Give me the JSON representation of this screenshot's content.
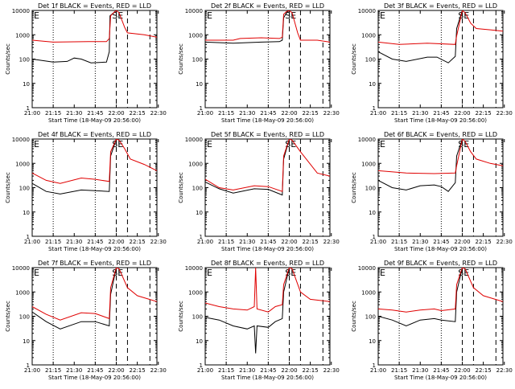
{
  "shared": {
    "xlabel": "Start Time (18-May-09 20:56:00)",
    "ylabel": "Counts/sec",
    "xticks": [
      "21:00",
      "21:15",
      "21:30",
      "21:45",
      "22:00",
      "22:15",
      "22:30"
    ],
    "yticks": [
      "1",
      "10",
      "100",
      "1000",
      "10000"
    ],
    "marker_left": "E",
    "marker_right": "SE",
    "series_colors": {
      "events": "#000000",
      "lld": "#e00000"
    }
  },
  "chart_data": [
    {
      "type": "line",
      "title": "Det 1f BLACK = Events, RED = LLD",
      "ylim": [
        1,
        10000
      ],
      "log_y": true,
      "series": [
        {
          "key": "events",
          "values": [
            [
              0,
              100
            ],
            [
              15,
              75
            ],
            [
              25,
              80
            ],
            [
              30,
              110
            ],
            [
              35,
              100
            ],
            [
              42,
              70
            ],
            [
              53,
              75
            ],
            [
              55,
              200
            ],
            [
              55.5,
              6000
            ],
            [
              60,
              10000
            ]
          ]
        },
        {
          "key": "lld",
          "values": [
            [
              0,
              600
            ],
            [
              15,
              500
            ],
            [
              40,
              520
            ],
            [
              53,
              520
            ],
            [
              55,
              700
            ],
            [
              56,
              6000
            ],
            [
              59,
              9000
            ],
            [
              60,
              10000
            ],
            [
              62,
              8000
            ],
            [
              66,
              2000
            ],
            [
              68,
              1200
            ],
            [
              80,
              1000
            ],
            [
              89,
              800
            ]
          ]
        }
      ]
    },
    {
      "type": "line",
      "title": "Det 2f BLACK = Events, RED = LLD",
      "ylim": [
        1,
        10000
      ],
      "log_y": true,
      "series": [
        {
          "key": "events",
          "values": [
            [
              0,
              500
            ],
            [
              20,
              450
            ],
            [
              40,
              500
            ],
            [
              53,
              520
            ],
            [
              55,
              600
            ],
            [
              56,
              5000
            ],
            [
              58,
              8000
            ],
            [
              60,
              10000
            ]
          ]
        },
        {
          "key": "lld",
          "values": [
            [
              0,
              600
            ],
            [
              20,
              600
            ],
            [
              25,
              700
            ],
            [
              40,
              750
            ],
            [
              53,
              700
            ],
            [
              55,
              800
            ],
            [
              56,
              7000
            ],
            [
              58,
              9000
            ],
            [
              60,
              10000
            ],
            [
              62,
              8000
            ],
            [
              66,
              1200
            ],
            [
              68,
              600
            ],
            [
              80,
              600
            ],
            [
              89,
              500
            ]
          ]
        }
      ]
    },
    {
      "type": "line",
      "title": "Det 3f BLACK = Events, RED = LLD",
      "ylim": [
        1,
        10000
      ],
      "log_y": true,
      "series": [
        {
          "key": "events",
          "values": [
            [
              0,
              200
            ],
            [
              10,
              100
            ],
            [
              20,
              80
            ],
            [
              35,
              120
            ],
            [
              42,
              120
            ],
            [
              50,
              70
            ],
            [
              55,
              130
            ],
            [
              56,
              1800
            ],
            [
              60,
              10000
            ]
          ]
        },
        {
          "key": "lld",
          "values": [
            [
              0,
              500
            ],
            [
              15,
              400
            ],
            [
              35,
              450
            ],
            [
              55,
              400
            ],
            [
              56,
              900
            ],
            [
              60,
              10000
            ],
            [
              62,
              8000
            ],
            [
              66,
              3000
            ],
            [
              70,
              1800
            ],
            [
              80,
              1600
            ],
            [
              89,
              1400
            ]
          ]
        }
      ]
    },
    {
      "type": "line",
      "title": "Det 4f BLACK = Events, RED = LLD",
      "ylim": [
        1,
        10000
      ],
      "log_y": true,
      "series": [
        {
          "key": "events",
          "values": [
            [
              0,
              150
            ],
            [
              10,
              70
            ],
            [
              20,
              55
            ],
            [
              35,
              80
            ],
            [
              45,
              75
            ],
            [
              55,
              70
            ],
            [
              56,
              2000
            ],
            [
              60,
              10000
            ]
          ]
        },
        {
          "key": "lld",
          "values": [
            [
              0,
              400
            ],
            [
              10,
              200
            ],
            [
              20,
              150
            ],
            [
              35,
              250
            ],
            [
              45,
              220
            ],
            [
              55,
              180
            ],
            [
              56,
              3000
            ],
            [
              60,
              10000
            ],
            [
              62,
              9000
            ],
            [
              66,
              4000
            ],
            [
              70,
              1500
            ],
            [
              80,
              900
            ],
            [
              89,
              500
            ]
          ]
        }
      ]
    },
    {
      "type": "line",
      "title": "Det 5f BLACK = Events, RED = LLD",
      "ylim": [
        1,
        10000
      ],
      "log_y": true,
      "series": [
        {
          "key": "events",
          "values": [
            [
              0,
              170
            ],
            [
              10,
              90
            ],
            [
              20,
              60
            ],
            [
              35,
              90
            ],
            [
              45,
              85
            ],
            [
              55,
              50
            ],
            [
              56,
              1500
            ],
            [
              60,
              10000
            ]
          ]
        },
        {
          "key": "lld",
          "values": [
            [
              0,
              220
            ],
            [
              10,
              100
            ],
            [
              20,
              80
            ],
            [
              35,
              120
            ],
            [
              45,
              110
            ],
            [
              55,
              70
            ],
            [
              56,
              2000
            ],
            [
              60,
              10000
            ],
            [
              62,
              9000
            ],
            [
              68,
              3000
            ],
            [
              80,
              400
            ],
            [
              89,
              300
            ]
          ]
        }
      ]
    },
    {
      "type": "line",
      "title": "Det 6f BLACK = Events, RED = LLD",
      "ylim": [
        1,
        10000
      ],
      "log_y": true,
      "series": [
        {
          "key": "events",
          "values": [
            [
              0,
              200
            ],
            [
              10,
              100
            ],
            [
              20,
              80
            ],
            [
              30,
              120
            ],
            [
              40,
              130
            ],
            [
              45,
              110
            ],
            [
              50,
              70
            ],
            [
              55,
              160
            ],
            [
              56,
              2000
            ],
            [
              60,
              10000
            ]
          ]
        },
        {
          "key": "lld",
          "values": [
            [
              0,
              500
            ],
            [
              20,
              400
            ],
            [
              40,
              380
            ],
            [
              55,
              400
            ],
            [
              56,
              800
            ],
            [
              60,
              10000
            ],
            [
              62,
              8000
            ],
            [
              66,
              3000
            ],
            [
              70,
              1500
            ],
            [
              80,
              1000
            ],
            [
              89,
              800
            ]
          ]
        }
      ]
    },
    {
      "type": "line",
      "title": "Det 7f BLACK = Events, RED = LLD",
      "ylim": [
        1,
        10000
      ],
      "log_y": true,
      "series": [
        {
          "key": "events",
          "values": [
            [
              0,
              150
            ],
            [
              10,
              60
            ],
            [
              20,
              30
            ],
            [
              35,
              60
            ],
            [
              45,
              60
            ],
            [
              55,
              40
            ],
            [
              56,
              800
            ],
            [
              60,
              10000
            ]
          ]
        },
        {
          "key": "lld",
          "values": [
            [
              0,
              250
            ],
            [
              10,
              120
            ],
            [
              20,
              70
            ],
            [
              35,
              140
            ],
            [
              45,
              130
            ],
            [
              55,
              80
            ],
            [
              56,
              1500
            ],
            [
              60,
              10000
            ],
            [
              62,
              9000
            ],
            [
              68,
              1500
            ],
            [
              75,
              700
            ],
            [
              89,
              400
            ]
          ]
        }
      ]
    },
    {
      "type": "line",
      "title": "Det 8f BLACK = Events, RED = LLD",
      "ylim": [
        1,
        10000
      ],
      "log_y": true,
      "series": [
        {
          "key": "events",
          "values": [
            [
              0,
              90
            ],
            [
              10,
              70
            ],
            [
              20,
              40
            ],
            [
              30,
              30
            ],
            [
              35,
              40
            ],
            [
              36,
              3
            ],
            [
              37,
              40
            ],
            [
              45,
              35
            ],
            [
              50,
              60
            ],
            [
              55,
              80
            ],
            [
              56,
              1000
            ],
            [
              60,
              10000
            ]
          ]
        },
        {
          "key": "lld",
          "values": [
            [
              0,
              350
            ],
            [
              10,
              250
            ],
            [
              20,
              200
            ],
            [
              30,
              180
            ],
            [
              35,
              250
            ],
            [
              36,
              10000
            ],
            [
              37,
              200
            ],
            [
              45,
              150
            ],
            [
              50,
              250
            ],
            [
              55,
              300
            ],
            [
              56,
              2000
            ],
            [
              60,
              10000
            ],
            [
              62,
              9000
            ],
            [
              68,
              1000
            ],
            [
              75,
              500
            ],
            [
              89,
              400
            ]
          ]
        }
      ]
    },
    {
      "type": "line",
      "title": "Det 9f BLACK = Events, RED = LLD",
      "ylim": [
        1,
        10000
      ],
      "log_y": true,
      "series": [
        {
          "key": "events",
          "values": [
            [
              0,
              100
            ],
            [
              10,
              70
            ],
            [
              20,
              40
            ],
            [
              30,
              70
            ],
            [
              40,
              80
            ],
            [
              45,
              70
            ],
            [
              55,
              60
            ],
            [
              56,
              1000
            ],
            [
              60,
              10000
            ]
          ]
        },
        {
          "key": "lld",
          "values": [
            [
              0,
              200
            ],
            [
              10,
              180
            ],
            [
              20,
              150
            ],
            [
              30,
              180
            ],
            [
              40,
              200
            ],
            [
              45,
              170
            ],
            [
              55,
              200
            ],
            [
              56,
              2000
            ],
            [
              60,
              10000
            ],
            [
              62,
              9000
            ],
            [
              68,
              1500
            ],
            [
              75,
              700
            ],
            [
              89,
              400
            ]
          ]
        }
      ]
    }
  ]
}
